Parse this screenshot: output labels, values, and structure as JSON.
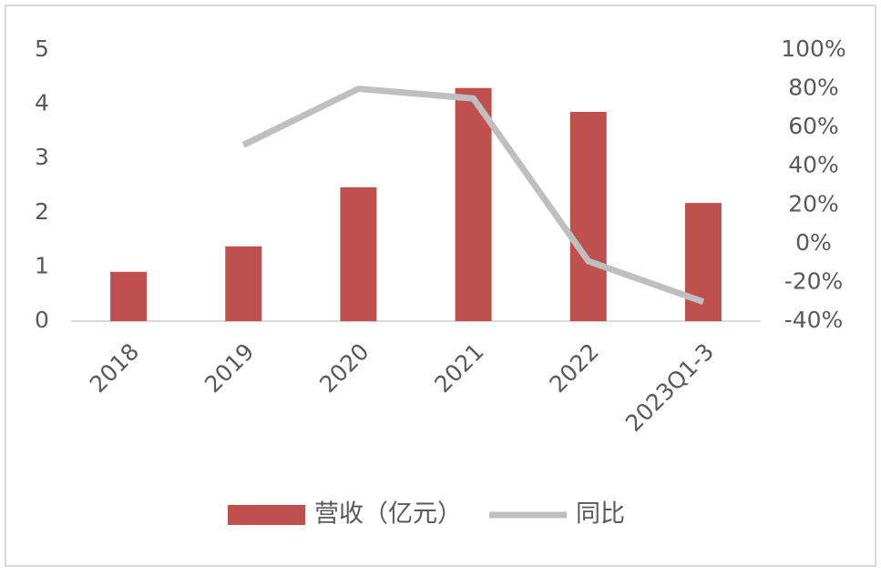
{
  "chart_data": {
    "type": "bar",
    "categories": [
      "2018",
      "2019",
      "2020",
      "2021",
      "2022",
      "2023Q1-3"
    ],
    "series": [
      {
        "name": "营收（亿元）",
        "color": "#c0504d",
        "values": [
          0.91,
          1.38,
          2.47,
          4.3,
          3.86,
          2.18
        ]
      },
      {
        "name": "同比",
        "type": "line",
        "axis": "y2",
        "color": "#bfbfbf",
        "values": [
          null,
          51,
          80,
          75,
          -9,
          -30
        ]
      }
    ],
    "ylim": [
      0,
      5
    ],
    "yticks": [
      0,
      1,
      2,
      3,
      4,
      5
    ],
    "y2lim": [
      -40,
      100
    ],
    "y2ticks": [
      {
        "value": -40,
        "label": "-40%"
      },
      {
        "value": -20,
        "label": "-20%"
      },
      {
        "value": 0,
        "label": "0%"
      },
      {
        "value": 20,
        "label": "20%"
      },
      {
        "value": 40,
        "label": "40%"
      },
      {
        "value": 60,
        "label": "60%"
      },
      {
        "value": 80,
        "label": "80%"
      },
      {
        "value": 100,
        "label": "100%"
      }
    ],
    "legend": "bottom"
  }
}
